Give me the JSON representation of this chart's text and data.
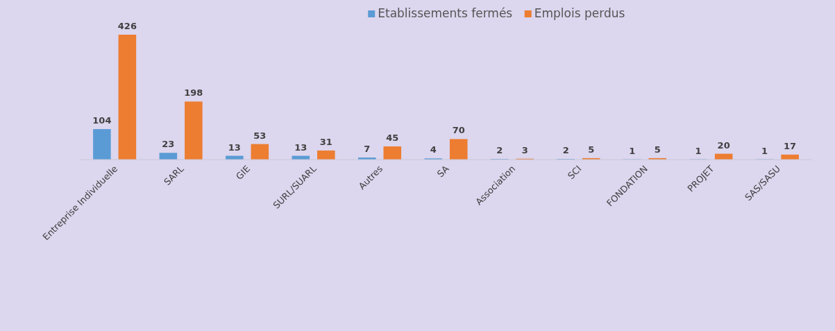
{
  "chart_data": {
    "type": "bar",
    "categories": [
      "Entreprise Individuelle",
      "SARL",
      "GIE",
      "SURL/SUARL",
      "Autres",
      "SA",
      "Association",
      "SCI",
      "FONDATION",
      "PROJET",
      "SAS/SASU"
    ],
    "series": [
      {
        "name": "Etablissements fermés",
        "color": "#5b9bd5",
        "values": [
          104,
          23,
          13,
          13,
          7,
          4,
          2,
          2,
          1,
          1,
          1
        ]
      },
      {
        "name": "Emplois perdus",
        "color": "#ed7d31",
        "values": [
          426,
          198,
          53,
          31,
          45,
          70,
          3,
          5,
          5,
          20,
          17
        ]
      }
    ],
    "data_labels": true,
    "legend": "top"
  }
}
